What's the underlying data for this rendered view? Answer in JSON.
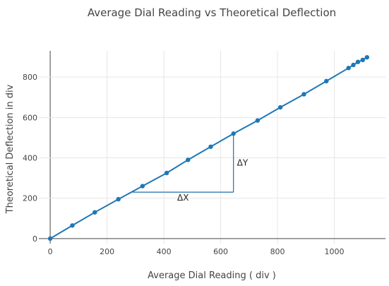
{
  "chart_data": {
    "type": "line",
    "title": "Average Dial Reading vs Theoretical Deflection",
    "xlabel": "Average Dial Reading ( div )",
    "ylabel": "Theoretical Deflection in div",
    "xlim": [
      -40,
      1180
    ],
    "ylim": [
      -25,
      930
    ],
    "x_ticks": [
      0,
      200,
      400,
      600,
      800,
      1000
    ],
    "y_ticks": [
      0,
      200,
      400,
      600,
      800
    ],
    "grid": true,
    "line_color": "#1f77b4",
    "annotation_color": "#1f6ea8",
    "series": [
      {
        "mode": "lines+markers",
        "x": [
          0,
          78,
          157,
          240,
          325,
          410,
          485,
          565,
          645,
          730,
          810,
          893,
          972,
          1050,
          1067,
          1083,
          1100,
          1115
        ],
        "y": [
          0,
          65,
          130,
          195,
          260,
          325,
          390,
          455,
          520,
          585,
          650,
          715,
          780,
          845,
          860,
          875,
          885,
          898
        ]
      }
    ],
    "slope_triangle": {
      "x_start": 290,
      "x_end": 645,
      "y_bottom": 230,
      "y_top": 520,
      "dx_label": "ΔX",
      "dy_label": "ΔY"
    }
  }
}
